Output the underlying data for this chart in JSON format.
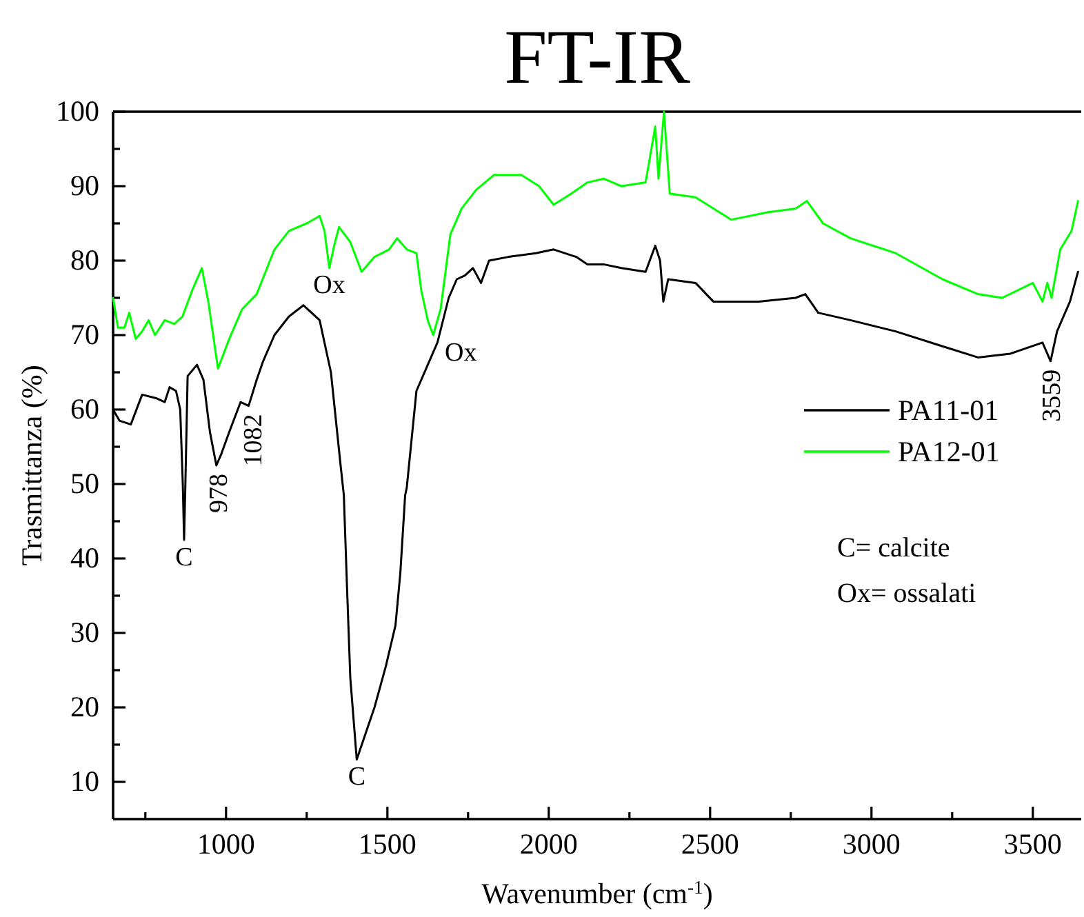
{
  "chart_data": {
    "type": "line",
    "title": "FT-IR",
    "xlabel": "Wavenumber (cm$^{-1}$)",
    "ylabel": "Trasmittanza (%)",
    "xlim": [
      650,
      3650
    ],
    "ylim": [
      5,
      100
    ],
    "xticks": [
      {
        "value": 750,
        "label": null
      },
      1000,
      {
        "value": 1250,
        "label": null
      },
      1500,
      {
        "value": 1750,
        "label": null
      },
      2000,
      {
        "value": 2250,
        "label": null
      },
      2500,
      {
        "value": 2750,
        "label": null
      },
      3000,
      {
        "value": 3250,
        "label": null
      },
      3500
    ],
    "yticks": [
      10,
      {
        "value": 15,
        "label": null
      },
      20,
      {
        "value": 25,
        "label": null
      },
      30,
      {
        "value": 35,
        "label": null
      },
      40,
      {
        "value": 45,
        "label": null
      },
      50,
      {
        "value": 55,
        "label": null
      },
      60,
      {
        "value": 65,
        "label": null
      },
      70,
      {
        "value": 75,
        "label": null
      },
      80,
      {
        "value": 85,
        "label": null
      },
      90,
      {
        "value": 95,
        "label": null
      },
      100
    ],
    "legend": "right",
    "series": [
      {
        "name": "PA11-01",
        "color": "#000000",
        "x": [
          650,
          670,
          705,
          740,
          785,
          810,
          825,
          845,
          858,
          866,
          870,
          874,
          881,
          910,
          930,
          950,
          970,
          985,
          1010,
          1045,
          1070,
          1095,
          1115,
          1150,
          1195,
          1240,
          1290,
          1325,
          1355,
          1365,
          1375,
          1385,
          1405,
          1460,
          1495,
          1525,
          1540,
          1555,
          1560,
          1590,
          1620,
          1655,
          1690,
          1715,
          1740,
          1765,
          1790,
          1815,
          1875,
          1960,
          2015,
          2085,
          2120,
          2170,
          2225,
          2300,
          2330,
          2345,
          2355,
          2370,
          2455,
          2510,
          2650,
          2765,
          2795,
          2835,
          2935,
          3075,
          3220,
          3330,
          3430,
          3530,
          3555,
          3575,
          3615,
          3640
        ],
        "values": [
          60,
          58.5,
          58,
          62,
          61.5,
          61,
          63,
          62.5,
          60,
          50,
          42.5,
          50,
          64.5,
          66,
          64,
          57,
          52.5,
          54,
          57,
          61,
          60.5,
          64,
          66.5,
          70,
          72.5,
          74,
          72,
          65,
          52.5,
          48.5,
          36,
          24,
          13,
          20,
          25.5,
          31,
          38,
          48.5,
          49.5,
          62.5,
          65.5,
          69,
          75,
          77.5,
          78,
          79,
          77,
          80,
          80.5,
          81,
          81.5,
          80.5,
          79.5,
          79.5,
          79,
          78.5,
          82,
          80,
          74.5,
          77.5,
          77,
          74.5,
          74.5,
          75,
          75.5,
          73,
          72,
          70.5,
          68.5,
          67,
          67.5,
          69,
          66.5,
          70.5,
          74.5,
          78.5
        ]
      },
      {
        "name": "PA12-01",
        "color": "#00ff00",
        "x": [
          650,
          665,
          685,
          700,
          720,
          740,
          760,
          780,
          810,
          840,
          865,
          895,
          925,
          945,
          975,
          1010,
          1050,
          1095,
          1150,
          1195,
          1250,
          1290,
          1305,
          1320,
          1335,
          1350,
          1385,
          1420,
          1460,
          1505,
          1530,
          1560,
          1590,
          1605,
          1625,
          1642,
          1665,
          1695,
          1730,
          1775,
          1830,
          1915,
          1970,
          2015,
          2070,
          2120,
          2170,
          2225,
          2300,
          2330,
          2340,
          2357,
          2375,
          2455,
          2565,
          2680,
          2765,
          2800,
          2850,
          2935,
          3075,
          3220,
          3330,
          3405,
          3500,
          3530,
          3545,
          3558,
          3585,
          3620,
          3640
        ],
        "values": [
          75,
          71,
          71,
          73,
          69.5,
          70.5,
          72,
          70,
          72,
          71.5,
          72.5,
          76,
          79,
          74.5,
          65.5,
          69.5,
          73.5,
          75.5,
          81.5,
          84,
          85,
          86,
          84,
          79,
          82,
          84.5,
          82.5,
          78.5,
          80.5,
          81.5,
          83,
          81.5,
          81,
          76,
          72,
          70,
          73.5,
          83.5,
          87,
          89.5,
          91.5,
          91.5,
          90,
          87.5,
          89,
          90.5,
          91,
          90,
          90.5,
          98,
          91,
          100,
          89,
          88.5,
          85.5,
          86.5,
          87,
          88,
          85,
          83,
          81,
          77.5,
          75.5,
          75,
          77,
          74.5,
          77,
          75,
          81.5,
          84,
          88
        ]
      }
    ],
    "annotations": [
      {
        "text": "C",
        "x": 870,
        "y": 42.5
      },
      {
        "text": "978",
        "x": 975,
        "y": 52.5
      },
      {
        "text": "1082",
        "x": 1080,
        "y": 60.5
      },
      {
        "text": "Ox",
        "x": 1320,
        "y": 79
      },
      {
        "text": "Ox",
        "x": 1642,
        "y": 70
      },
      {
        "text": "C",
        "x": 1405,
        "y": 13
      },
      {
        "text": "3559",
        "x": 3555,
        "y": 66.5
      },
      "C= calcite",
      "Ox= ossalati"
    ]
  }
}
